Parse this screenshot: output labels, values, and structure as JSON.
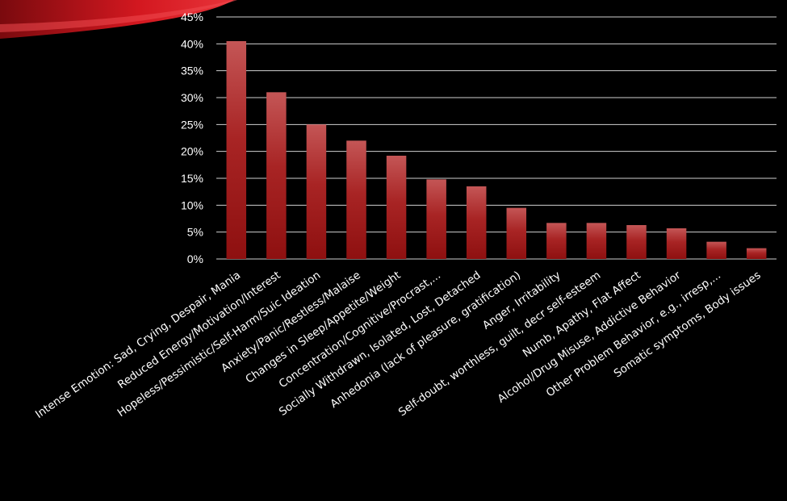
{
  "chart_data": {
    "type": "bar",
    "title": "",
    "xlabel": "",
    "ylabel": "",
    "ylim": [
      0,
      45
    ],
    "y_ticks": [
      "0%",
      "5%",
      "10%",
      "15%",
      "20%",
      "25%",
      "30%",
      "35%",
      "40%",
      "45%"
    ],
    "grid": true,
    "categories": [
      "Intense Emotion: Sad, Crying, Despair, Mania",
      "Reduced Energy/Motivation/Interest",
      "Hopeless/Pessimistic/Self-Harm/Suic Ideation",
      "Anxiety/Panic/Restless/Malaise",
      "Changes in Sleep/Appetite/Weight",
      "Concentration/Cognitive/Procrast,...",
      "Socially Withdrawn, Isolated, Lost, Detached",
      "Anhedonia (lack of pleasure, gratification)",
      "Anger, Irritability",
      "Self-doubt, worthless, guilt, decr self-esteem",
      "Numb, Apathy, Flat Affect",
      "Alcohol/Drug Misuse, Addictive Behavior",
      "Other Problem Behavior, e.g., irresp,...",
      "Somatic symptoms, Body issues"
    ],
    "values": [
      40.5,
      31,
      25,
      22,
      19.2,
      14.8,
      13.5,
      9.5,
      6.7,
      6.7,
      6.3,
      5.7,
      3.2,
      2
    ]
  },
  "colors": {
    "background": "#000000",
    "bar": "#b01818",
    "gridline": "#d0d0d0",
    "text": "#ffffff",
    "swoosh": "#c4121a"
  }
}
